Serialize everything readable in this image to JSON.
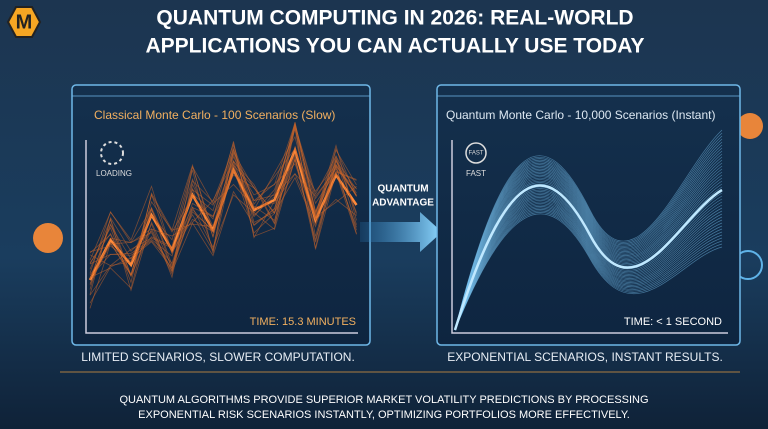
{
  "header": {
    "logo": "M",
    "title_lines": [
      "QUANTUM COMPUTING IN 2026: REAL-WORLD",
      "APPLICATIONS YOU CAN ACTUALLY USE TODAY"
    ]
  },
  "left_panel": {
    "title": "Classical Monte Carlo - 100 Scenarios (Slow)",
    "status": "LOADING",
    "time": "TIME: 15.3 MINUTES",
    "caption": "LIMITED SCENARIOS, SLOWER COMPUTATION."
  },
  "arrow": {
    "label_lines": [
      "QUANTUM",
      "ADVANTAGE"
    ]
  },
  "right_panel": {
    "title": "Quantum Monte Carlo - 10,000 Scenarios (Instant)",
    "status": "FAST",
    "badge": "FAST",
    "time": "TIME: < 1 SECOND",
    "caption": "EXPONENTIAL SCENARIOS, INSTANT RESULTS."
  },
  "footer": {
    "lines": [
      "QUANTUM ALGORITHMS PROVIDE SUPERIOR MARKET VOLATILITY PREDICTIONS BY PROCESSING",
      "EXPONENTIAL RISK SCENARIOS INSTANTLY, OPTIMIZING PORTFOLIOS MORE EFFECTIVELY."
    ]
  }
}
